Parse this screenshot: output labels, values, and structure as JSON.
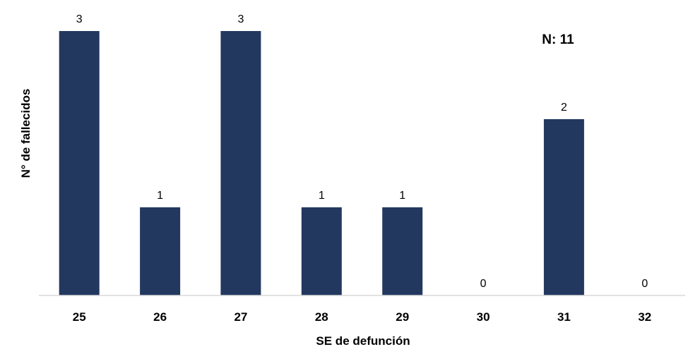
{
  "chart_data": {
    "type": "bar",
    "categories": [
      "25",
      "26",
      "27",
      "28",
      "29",
      "30",
      "31",
      "32"
    ],
    "values": [
      3,
      1,
      3,
      1,
      1,
      0,
      2,
      0
    ],
    "xlabel": "SE de defunción",
    "ylabel": "N° de fallecidos",
    "ylim": [
      0,
      3
    ],
    "grid": false,
    "data_labels": true,
    "annotation": "N: 11",
    "bar_color": "#22385f",
    "axis_color": "#d9d9d9"
  }
}
